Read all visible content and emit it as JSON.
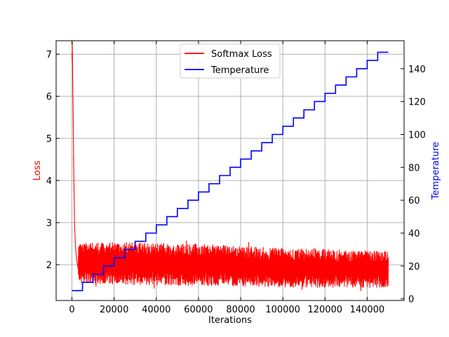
{
  "chart_data": {
    "type": "line",
    "title": "",
    "xlabel": "Iterations",
    "ylabel_left": "Loss",
    "ylabel_right": "Temperature",
    "xlim": [
      -7500,
      157500
    ],
    "ylim_left": [
      1.15,
      7.32
    ],
    "ylim_right": [
      -1,
      157
    ],
    "x_ticks": [
      0,
      20000,
      40000,
      60000,
      80000,
      100000,
      120000,
      140000
    ],
    "x_tick_labels": [
      "0",
      "20000",
      "40000",
      "60000",
      "80000",
      "100000",
      "120000",
      "140000"
    ],
    "y_left_ticks": [
      2,
      3,
      4,
      5,
      6,
      7
    ],
    "y_left_tick_labels": [
      "2",
      "3",
      "4",
      "5",
      "6",
      "7"
    ],
    "y_right_ticks": [
      0,
      20,
      40,
      60,
      80,
      100,
      120,
      140
    ],
    "y_right_tick_labels": [
      "0",
      "20",
      "40",
      "60",
      "80",
      "100",
      "120",
      "140"
    ],
    "grid": true,
    "legend_position": "top-center",
    "legend": [
      "Softmax Loss",
      "Temperature"
    ],
    "series": [
      {
        "name": "Softmax Loss",
        "axis": "left",
        "color": "#ff0000",
        "initial_spike": [
          {
            "x": 0,
            "y": 7.05
          },
          {
            "x": 300,
            "y": 6.7
          },
          {
            "x": 600,
            "y": 5.5
          },
          {
            "x": 900,
            "y": 4.0
          },
          {
            "x": 1200,
            "y": 3.0
          },
          {
            "x": 1600,
            "y": 2.5
          },
          {
            "x": 2200,
            "y": 2.1
          },
          {
            "x": 3000,
            "y": 1.9
          }
        ],
        "band_envelope": [
          {
            "x": 3000,
            "low": 1.55,
            "high": 2.5
          },
          {
            "x": 20000,
            "low": 1.52,
            "high": 2.55
          },
          {
            "x": 40000,
            "low": 1.5,
            "high": 2.52
          },
          {
            "x": 60000,
            "low": 1.5,
            "high": 2.5
          },
          {
            "x": 80000,
            "low": 1.48,
            "high": 2.45
          },
          {
            "x": 100000,
            "low": 1.46,
            "high": 2.4
          },
          {
            "x": 120000,
            "low": 1.45,
            "high": 2.38
          },
          {
            "x": 150000,
            "low": 1.45,
            "high": 2.32
          }
        ]
      },
      {
        "name": "Temperature",
        "axis": "right",
        "color": "#0000ff",
        "step": true,
        "x": [
          0,
          5000,
          10000,
          15000,
          20000,
          25000,
          30000,
          35000,
          40000,
          45000,
          50000,
          55000,
          60000,
          65000,
          70000,
          75000,
          80000,
          85000,
          90000,
          95000,
          100000,
          105000,
          110000,
          115000,
          120000,
          125000,
          130000,
          135000,
          140000,
          145000,
          150000
        ],
        "y": [
          5,
          10,
          15,
          20,
          25,
          30,
          35,
          40,
          45,
          50,
          55,
          60,
          65,
          70,
          75,
          80,
          85,
          90,
          95,
          100,
          105,
          110,
          115,
          120,
          125,
          130,
          135,
          140,
          145,
          150,
          150
        ]
      }
    ]
  }
}
